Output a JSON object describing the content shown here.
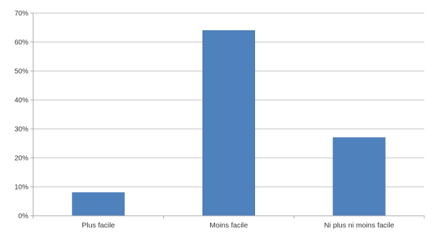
{
  "chart_data": {
    "type": "bar",
    "title": "",
    "xlabel": "",
    "ylabel": "",
    "categories": [
      "Plus facile",
      "Moins facile",
      "Ni plus ni moins facile"
    ],
    "values": [
      8,
      64,
      27
    ],
    "ylim": [
      0,
      70
    ],
    "yticks": [
      "0%",
      "10%",
      "20%",
      "30%",
      "40%",
      "50%",
      "60%",
      "70%"
    ],
    "grid": true,
    "legend": "none",
    "colors": {
      "bar": "#4F81BD",
      "bar_edge": "#3A6CA8",
      "grid": "#BFBFBF",
      "axis": "#A6A6A6"
    }
  }
}
